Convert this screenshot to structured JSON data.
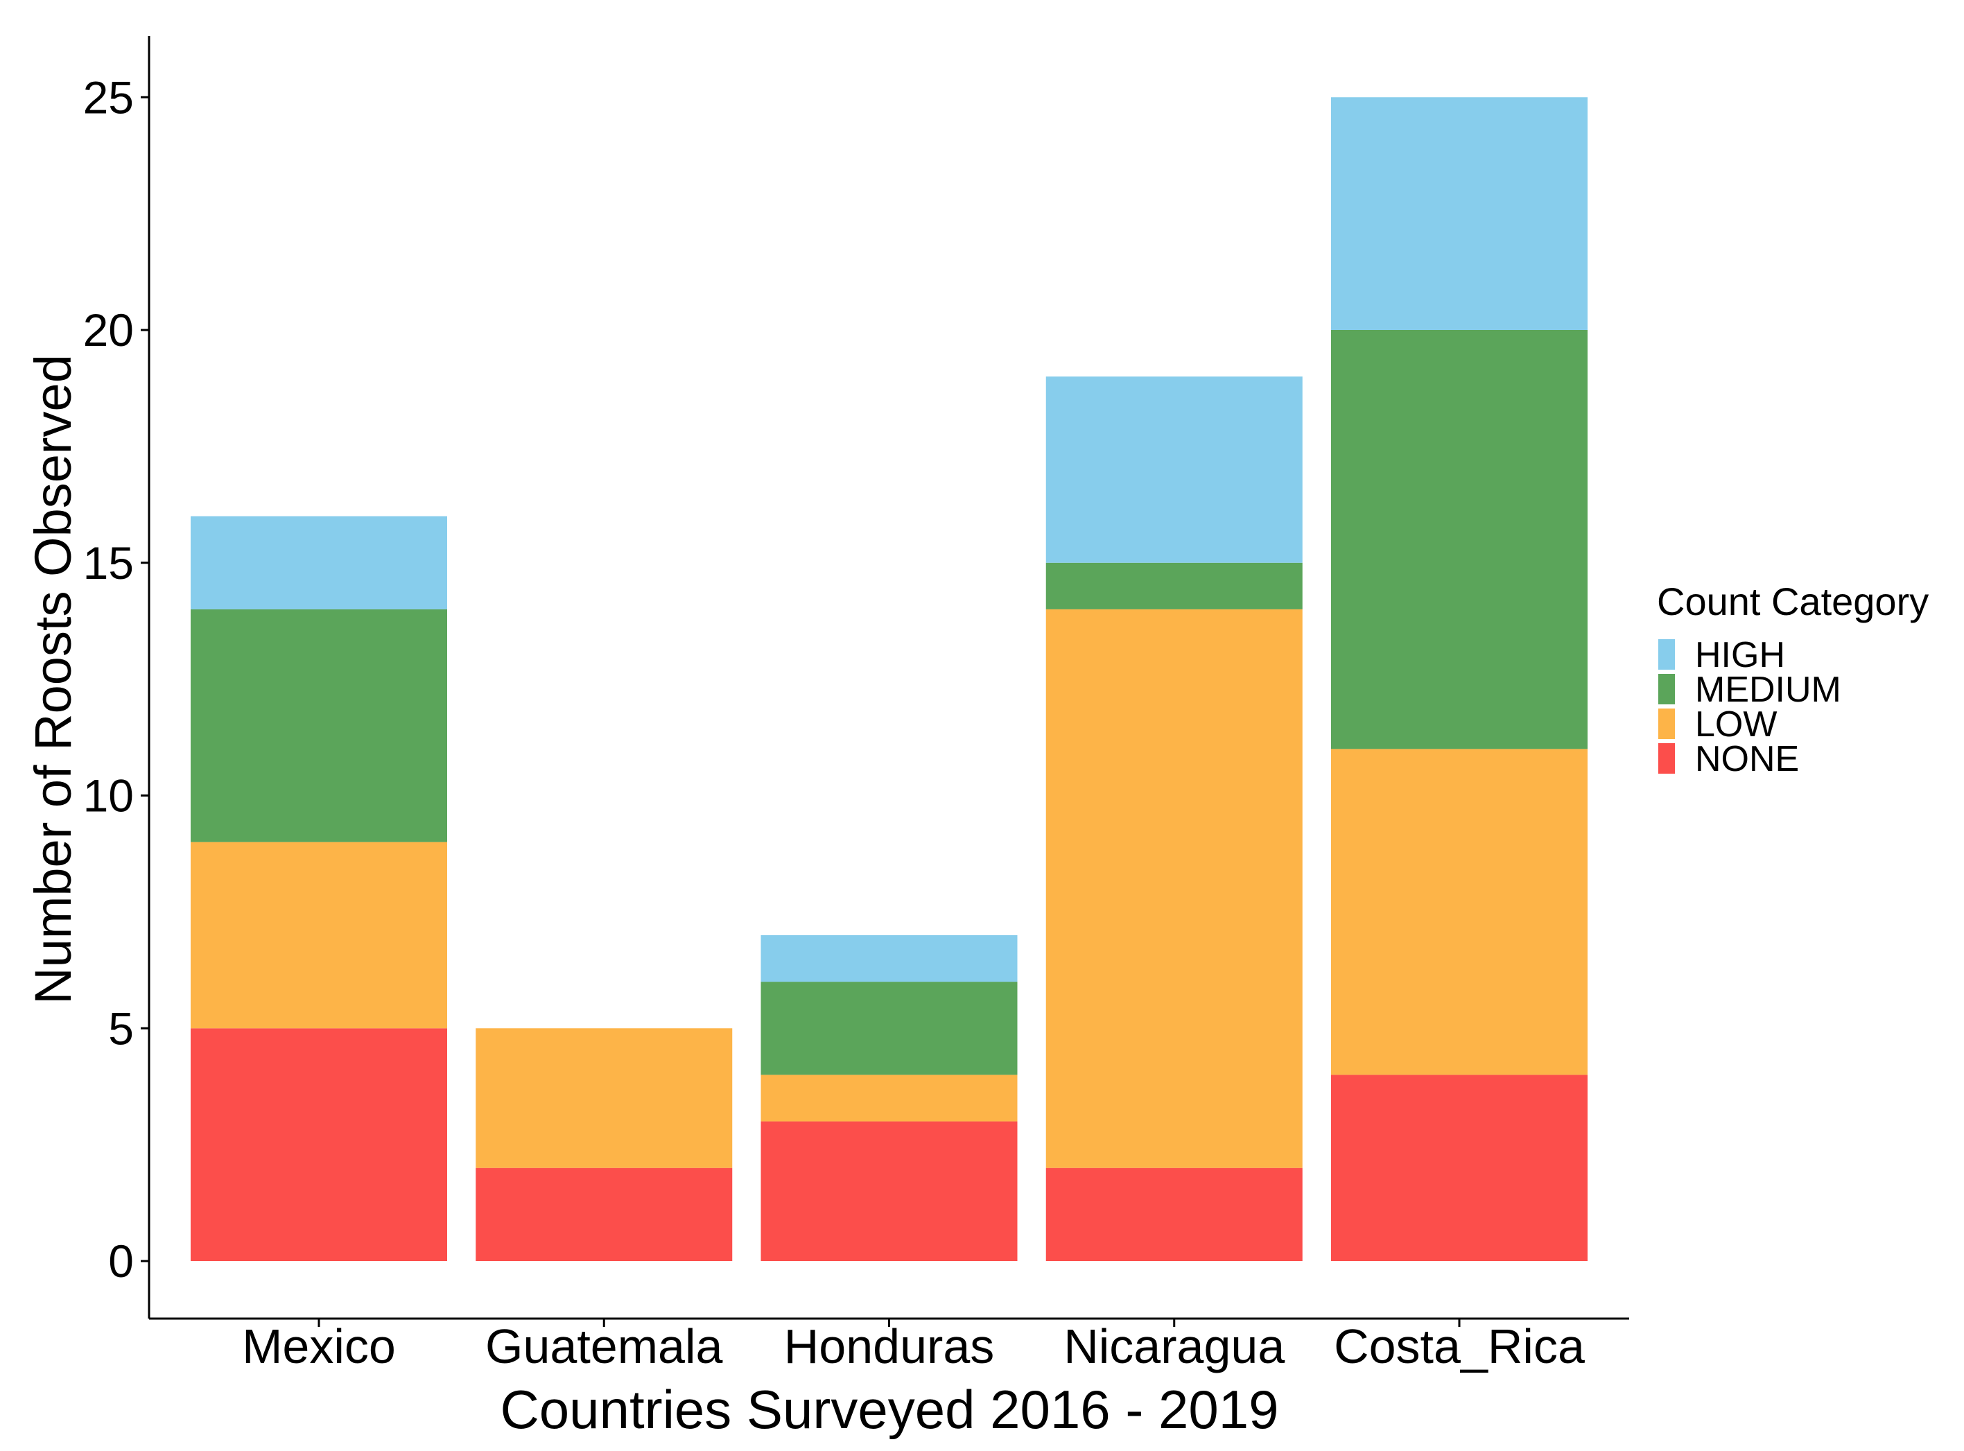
{
  "chart_data": {
    "type": "bar",
    "stacked": true,
    "title": "",
    "xlabel": "Countries Surveyed 2016 - 2019",
    "ylabel": "Number of Roosts Observed",
    "ylim": [
      0,
      26
    ],
    "yticks": [
      0,
      5,
      10,
      15,
      20,
      25
    ],
    "grid": false,
    "categories": [
      "Mexico",
      "Guatemala",
      "Honduras",
      "Nicaragua",
      "Costa_Rica"
    ],
    "series": [
      {
        "name": "NONE",
        "color": "#fc4e4b",
        "values": [
          5,
          2,
          3,
          2,
          4
        ]
      },
      {
        "name": "LOW",
        "color": "#fdb448",
        "values": [
          4,
          3,
          1,
          12,
          7
        ]
      },
      {
        "name": "MEDIUM",
        "color": "#5ba55a",
        "values": [
          5,
          0,
          2,
          1,
          9
        ]
      },
      {
        "name": "HIGH",
        "color": "#87cdec",
        "values": [
          2,
          0,
          1,
          4,
          5
        ]
      }
    ],
    "legend": {
      "title": "Count Category",
      "position": "right",
      "order": [
        "HIGH",
        "MEDIUM",
        "LOW",
        "NONE"
      ]
    }
  }
}
